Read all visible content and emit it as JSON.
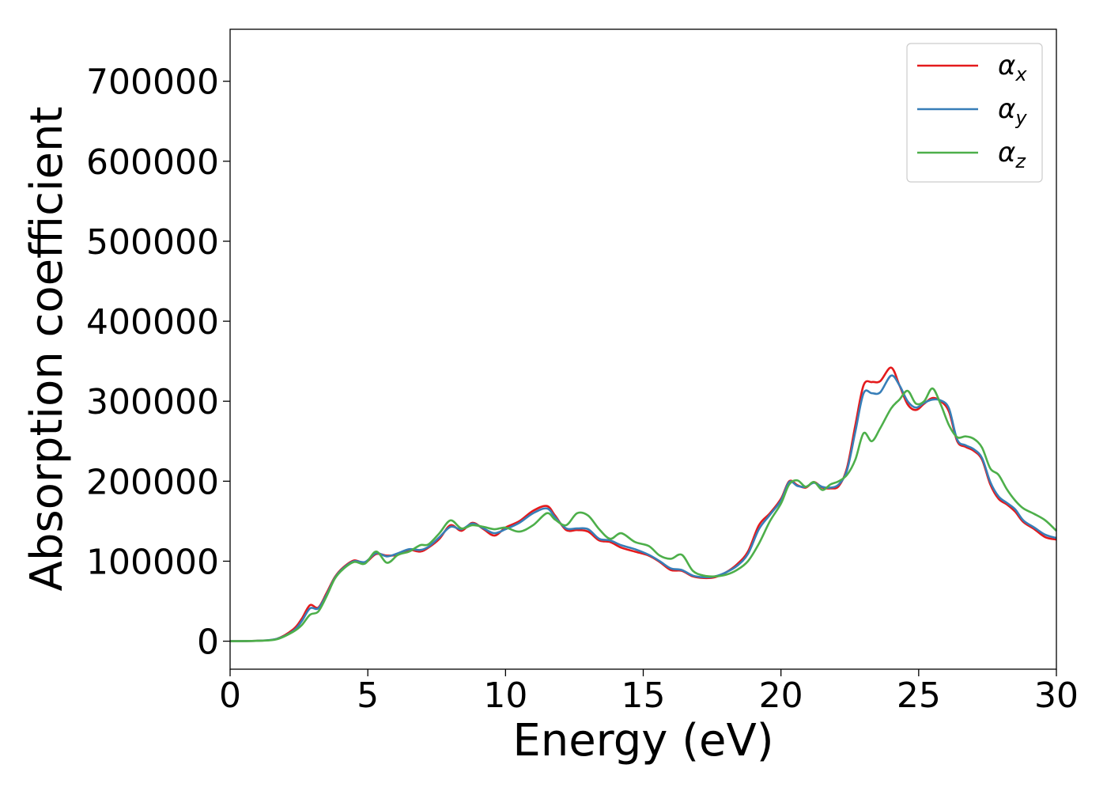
{
  "chart_data": {
    "type": "line",
    "xlabel": "Energy (eV)",
    "ylabel": "Absorption coefficient",
    "xlim": [
      0,
      30
    ],
    "ylim": [
      -35000,
      765000
    ],
    "xticks": [
      "0",
      "5",
      "10",
      "15",
      "20",
      "25",
      "30"
    ],
    "yticks": [
      "0",
      "100000",
      "200000",
      "300000",
      "400000",
      "500000",
      "600000",
      "700000"
    ],
    "grid": false,
    "legend_position": "top-right",
    "x": [
      0,
      1,
      1.7,
      2.3,
      2.6,
      2.9,
      3.2,
      3.5,
      3.8,
      4.1,
      4.5,
      4.9,
      5.3,
      5.7,
      6.1,
      6.5,
      6.9,
      7.2,
      7.6,
      8.0,
      8.4,
      8.8,
      9.2,
      9.6,
      10.0,
      10.5,
      11.0,
      11.5,
      11.8,
      12.2,
      12.6,
      13.0,
      13.4,
      13.8,
      14.2,
      14.7,
      15.2,
      15.6,
      16.0,
      16.4,
      16.8,
      17.2,
      17.6,
      18.0,
      18.4,
      18.8,
      19.2,
      19.6,
      20.0,
      20.3,
      20.6,
      20.9,
      21.2,
      21.5,
      21.8,
      22.1,
      22.4,
      22.7,
      23.0,
      23.3,
      23.6,
      24.0,
      24.3,
      24.6,
      24.9,
      25.2,
      25.5,
      25.8,
      26.1,
      26.4,
      26.7,
      27.0,
      27.3,
      27.6,
      27.9,
      28.2,
      28.5,
      28.8,
      29.2,
      29.6,
      30.0
    ],
    "series": [
      {
        "name": "α",
        "subscript": "x",
        "color": "#e41a1c",
        "values": [
          0,
          500,
          3000,
          15000,
          28000,
          45000,
          42000,
          60000,
          80000,
          92000,
          101000,
          98000,
          109000,
          107000,
          108000,
          114000,
          112000,
          117000,
          128000,
          145000,
          138000,
          148000,
          140000,
          132000,
          142000,
          150000,
          163000,
          169000,
          157000,
          139000,
          139000,
          137000,
          126000,
          124000,
          117000,
          112000,
          107000,
          99000,
          89000,
          88000,
          81000,
          79000,
          80000,
          86000,
          96000,
          112000,
          145000,
          160000,
          178000,
          200000,
          195000,
          192000,
          199000,
          192000,
          191000,
          194000,
          217000,
          270000,
          320000,
          324000,
          325000,
          342000,
          320000,
          296000,
          289000,
          297000,
          304000,
          300000,
          287000,
          250000,
          243000,
          238000,
          227000,
          196000,
          178000,
          171000,
          162000,
          149000,
          140000,
          130000,
          127000
        ]
      },
      {
        "name": "α",
        "subscript": "y",
        "color": "#377eb8",
        "values": [
          0,
          500,
          3000,
          13000,
          25000,
          41000,
          41000,
          58000,
          79000,
          91000,
          100000,
          99000,
          110000,
          106000,
          110000,
          115000,
          114000,
          118000,
          130000,
          143000,
          140000,
          147000,
          141000,
          135000,
          140000,
          148000,
          160000,
          166000,
          155000,
          141000,
          141000,
          140000,
          128000,
          126000,
          120000,
          115000,
          108000,
          100000,
          91000,
          89000,
          82000,
          80000,
          81000,
          86000,
          94000,
          109000,
          140000,
          158000,
          176000,
          199000,
          194000,
          193000,
          198000,
          193000,
          192000,
          196000,
          214000,
          262000,
          310000,
          310000,
          311000,
          332000,
          320000,
          300000,
          292000,
          298000,
          302000,
          301000,
          291000,
          252000,
          245000,
          240000,
          229000,
          199000,
          181000,
          173000,
          165000,
          151000,
          142000,
          133000,
          129000
        ]
      },
      {
        "name": "α",
        "subscript": "z",
        "color": "#4daf4a",
        "values": [
          0,
          500,
          2500,
          12000,
          20000,
          33000,
          37000,
          56000,
          78000,
          90000,
          99000,
          97000,
          112000,
          98000,
          108000,
          112000,
          120000,
          121000,
          135000,
          151000,
          141000,
          145000,
          143000,
          140000,
          142000,
          137000,
          145000,
          160000,
          152000,
          145000,
          160000,
          157000,
          140000,
          128000,
          135000,
          124000,
          119000,
          107000,
          103000,
          108000,
          88000,
          82000,
          81000,
          83000,
          89000,
          100000,
          122000,
          150000,
          172000,
          196000,
          201000,
          193000,
          199000,
          189000,
          196000,
          200000,
          208000,
          227000,
          260000,
          250000,
          266000,
          291000,
          302000,
          313000,
          297000,
          300000,
          316000,
          296000,
          270000,
          255000,
          256000,
          253000,
          242000,
          216000,
          208000,
          190000,
          176000,
          166000,
          159000,
          151000,
          138000
        ]
      }
    ]
  }
}
